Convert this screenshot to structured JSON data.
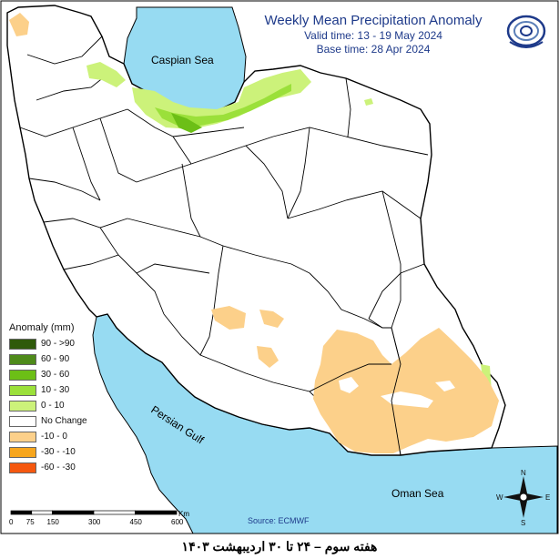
{
  "title": {
    "main": "Weekly Mean Precipitation Anomaly",
    "valid": "Valid time: 13 - 19 May 2024",
    "base": "Base time: 28 Apr 2024"
  },
  "labels": {
    "caspian": "Caspian Sea",
    "gulf": "Persian Gulf",
    "oman": "Oman Sea"
  },
  "legend": {
    "title": "Anomaly (mm)",
    "items": [
      {
        "label": "90 - >90",
        "color": "#2f5a0a"
      },
      {
        "label": "60 - 90",
        "color": "#4e8a1a"
      },
      {
        "label": "30 - 60",
        "color": "#6cbf16"
      },
      {
        "label": "10 - 30",
        "color": "#9be03a"
      },
      {
        "label": "0 - 10",
        "color": "#ccf27a"
      },
      {
        "label": "No Change",
        "color": "#ffffff"
      },
      {
        "label": "-10 - 0",
        "color": "#fcd08a"
      },
      {
        "label": "-30 - -10",
        "color": "#f7a61d"
      },
      {
        "label": "-60 - -30",
        "color": "#f5580f"
      }
    ]
  },
  "scale": {
    "ticks": [
      "0",
      "75",
      "150",
      "300",
      "450",
      "600"
    ],
    "unit": "Km"
  },
  "source": "Source: ECMWF",
  "compass": {
    "n": "N",
    "s": "S",
    "e": "E",
    "w": "W"
  },
  "caption": "هفته سوم – ۲۴ تا ۳۰ اردیبهشت ۱۴۰۳",
  "colors": {
    "sea": "#97dbf2",
    "border": "#000000",
    "title": "#1e3a8a"
  }
}
